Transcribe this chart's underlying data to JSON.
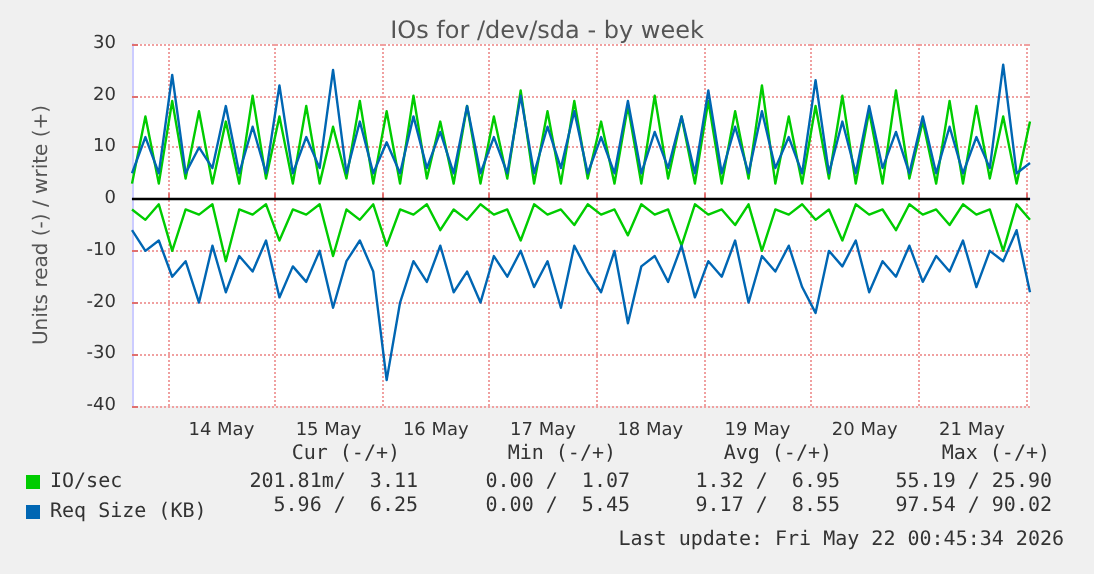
{
  "chart_data": {
    "type": "line",
    "title": "IOs for /dev/sda - by week",
    "ylabel": "Units read (-) / write (+)",
    "x": [
      "2026-05-13T16:00",
      "2026-05-13T19:00",
      "2026-05-13T22:00",
      "2026-05-14T01:00",
      "2026-05-14T04:00",
      "2026-05-14T07:00",
      "2026-05-14T10:00",
      "2026-05-14T13:00",
      "2026-05-14T16:00",
      "2026-05-14T19:00",
      "2026-05-14T22:00",
      "2026-05-15T01:00",
      "2026-05-15T04:00",
      "2026-05-15T07:00",
      "2026-05-15T10:00",
      "2026-05-15T13:00",
      "2026-05-15T16:00",
      "2026-05-15T19:00",
      "2026-05-15T22:00",
      "2026-05-16T01:00",
      "2026-05-16T04:00",
      "2026-05-16T07:00",
      "2026-05-16T10:00",
      "2026-05-16T13:00",
      "2026-05-16T16:00",
      "2026-05-16T19:00",
      "2026-05-16T22:00",
      "2026-05-17T01:00",
      "2026-05-17T04:00",
      "2026-05-17T07:00",
      "2026-05-17T10:00",
      "2026-05-17T13:00",
      "2026-05-17T16:00",
      "2026-05-17T19:00",
      "2026-05-17T22:00",
      "2026-05-18T01:00",
      "2026-05-18T04:00",
      "2026-05-18T07:00",
      "2026-05-18T10:00",
      "2026-05-18T13:00",
      "2026-05-18T16:00",
      "2026-05-18T19:00",
      "2026-05-18T22:00",
      "2026-05-19T01:00",
      "2026-05-19T04:00",
      "2026-05-19T07:00",
      "2026-05-19T10:00",
      "2026-05-19T13:00",
      "2026-05-19T16:00",
      "2026-05-19T19:00",
      "2026-05-19T22:00",
      "2026-05-20T01:00",
      "2026-05-20T04:00",
      "2026-05-20T07:00",
      "2026-05-20T10:00",
      "2026-05-20T13:00",
      "2026-05-20T16:00",
      "2026-05-20T19:00",
      "2026-05-20T22:00",
      "2026-05-21T01:00",
      "2026-05-21T04:00",
      "2026-05-21T07:00",
      "2026-05-21T10:00",
      "2026-05-21T13:00",
      "2026-05-21T16:00",
      "2026-05-21T19:00",
      "2026-05-21T22:00",
      "2026-05-22T01:00"
    ],
    "series": [
      {
        "color": "#00cc00",
        "values": [
          -2,
          -4,
          -1,
          -10,
          -2,
          -3,
          -1,
          -12,
          -2,
          -3,
          -1,
          -8,
          -2,
          -3,
          -1,
          -11,
          -2,
          -4,
          -1,
          -9,
          -2,
          -3,
          -1,
          -6,
          -2,
          -4,
          -1,
          -3,
          -2,
          -8,
          -1,
          -3,
          -2,
          -5,
          -1,
          -3,
          -2,
          -7,
          -1,
          -3,
          -2,
          -9,
          -1,
          -3,
          -2,
          -5,
          -1,
          -10,
          -2,
          -3,
          -1,
          -4,
          -2,
          -8,
          -1,
          -3,
          -2,
          -6,
          -1,
          -3,
          -2,
          -5,
          -1,
          -3,
          -2,
          -10,
          -1,
          -4
        ]
      },
      {
        "name": "IO/sec",
        "color": "#00cc00",
        "values": [
          3,
          16,
          3,
          19,
          4,
          17,
          3,
          15,
          3,
          20,
          4,
          16,
          3,
          18,
          3,
          14,
          4,
          19,
          3,
          17,
          3,
          20,
          4,
          15,
          3,
          18,
          3,
          16,
          4,
          21,
          3,
          17,
          3,
          19,
          4,
          15,
          3,
          18,
          3,
          20,
          4,
          16,
          3,
          19,
          3,
          17,
          4,
          22,
          3,
          16,
          3,
          18,
          4,
          20,
          3,
          17,
          3,
          21,
          4,
          15,
          3,
          19,
          3,
          18,
          4,
          16,
          3,
          15
        ]
      },
      {
        "color": "#0066b3",
        "values": [
          -6,
          -10,
          -8,
          -15,
          -12,
          -20,
          -9,
          -18,
          -11,
          -14,
          -8,
          -19,
          -13,
          -16,
          -10,
          -21,
          -12,
          -8,
          -14,
          -35,
          -20,
          -12,
          -16,
          -9,
          -18,
          -14,
          -20,
          -11,
          -15,
          -10,
          -17,
          -12,
          -21,
          -9,
          -14,
          -18,
          -10,
          -24,
          -13,
          -11,
          -16,
          -9,
          -19,
          -12,
          -15,
          -8,
          -20,
          -11,
          -14,
          -9,
          -17,
          -22,
          -10,
          -13,
          -8,
          -18,
          -12,
          -15,
          -9,
          -16,
          -11,
          -14,
          -8,
          -17,
          -10,
          -12,
          -6,
          -18
        ]
      },
      {
        "name": "Req Size (KB)",
        "color": "#0066b3",
        "values": [
          5,
          12,
          5,
          24,
          5,
          10,
          6,
          18,
          5,
          14,
          5,
          22,
          5,
          12,
          6,
          25,
          5,
          15,
          5,
          11,
          5,
          16,
          6,
          13,
          5,
          18,
          5,
          12,
          5,
          20,
          5,
          14,
          6,
          17,
          5,
          12,
          5,
          19,
          5,
          13,
          6,
          16,
          5,
          21,
          5,
          14,
          5,
          17,
          6,
          12,
          5,
          23,
          5,
          15,
          5,
          18,
          6,
          13,
          5,
          16,
          5,
          14,
          5,
          12,
          6,
          26,
          5,
          7
        ]
      }
    ],
    "xlim": [
      "2026-05-13T16:00",
      "2026-05-22T01:00"
    ],
    "xticks": [
      {
        "value": "2026-05-14T00:00",
        "label": null
      },
      {
        "value": "2026-05-14T12:00",
        "label": "14 May"
      },
      {
        "value": "2026-05-15T00:00",
        "label": null
      },
      {
        "value": "2026-05-15T12:00",
        "label": "15 May"
      },
      {
        "value": "2026-05-16T00:00",
        "label": null
      },
      {
        "value": "2026-05-16T12:00",
        "label": "16 May"
      },
      {
        "value": "2026-05-17T00:00",
        "label": null
      },
      {
        "value": "2026-05-17T12:00",
        "label": "17 May"
      },
      {
        "value": "2026-05-18T00:00",
        "label": null
      },
      {
        "value": "2026-05-18T12:00",
        "label": "18 May"
      },
      {
        "value": "2026-05-19T00:00",
        "label": null
      },
      {
        "value": "2026-05-19T12:00",
        "label": "19 May"
      },
      {
        "value": "2026-05-20T00:00",
        "label": null
      },
      {
        "value": "2026-05-20T12:00",
        "label": "20 May"
      },
      {
        "value": "2026-05-21T00:00",
        "label": null
      },
      {
        "value": "2026-05-21T12:00",
        "label": "21 May"
      },
      {
        "value": "2026-05-22T00:00",
        "label": null
      }
    ],
    "ylim": [
      -40,
      30
    ],
    "yticks": [
      -40,
      -30,
      -20,
      -10,
      0,
      10,
      20,
      30
    ],
    "grid": true,
    "legend": "bottom left",
    "marker": "none",
    "line_style": "solid",
    "ref_lines": [
      {
        "axis": "y",
        "value": 0,
        "color": "#000000"
      }
    ],
    "annotations": [
      "Cur (-/+)",
      "Min (-/+)",
      "Avg (-/+)",
      "Max (-/+)",
      "201.81m/  3.11",
      "0.00 /  1.07",
      "1.32 /  6.95",
      "55.19 / 25.90",
      "5.96 /  6.25",
      "0.00 /  5.45",
      "9.17 /  8.55",
      "97.54 / 90.02",
      "Last update: Fri May 22 00:45:34 2026"
    ]
  }
}
